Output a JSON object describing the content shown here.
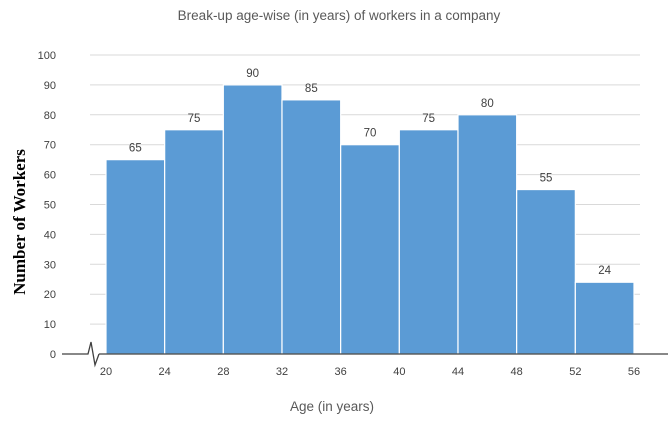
{
  "chart_data": {
    "type": "bar",
    "title": "Break-up age-wise (in years) of workers in a company",
    "xlabel": "Age (in years)",
    "ylabel": "Number of Workers",
    "x_edges": [
      20,
      24,
      28,
      32,
      36,
      40,
      44,
      48,
      52,
      56
    ],
    "series": [
      {
        "values": [
          65,
          75,
          90,
          85,
          70,
          75,
          80,
          55,
          24
        ]
      }
    ],
    "ylim": [
      0,
      100
    ],
    "yticks": [
      0,
      10,
      20,
      30,
      40,
      50,
      60,
      70,
      80,
      90,
      100
    ],
    "xlim": [
      20,
      56
    ],
    "grid": true,
    "axis_break": true,
    "colors": {
      "bar": "#5b9bd5",
      "grid": "#d9d9d9",
      "axis": "#404040"
    }
  }
}
